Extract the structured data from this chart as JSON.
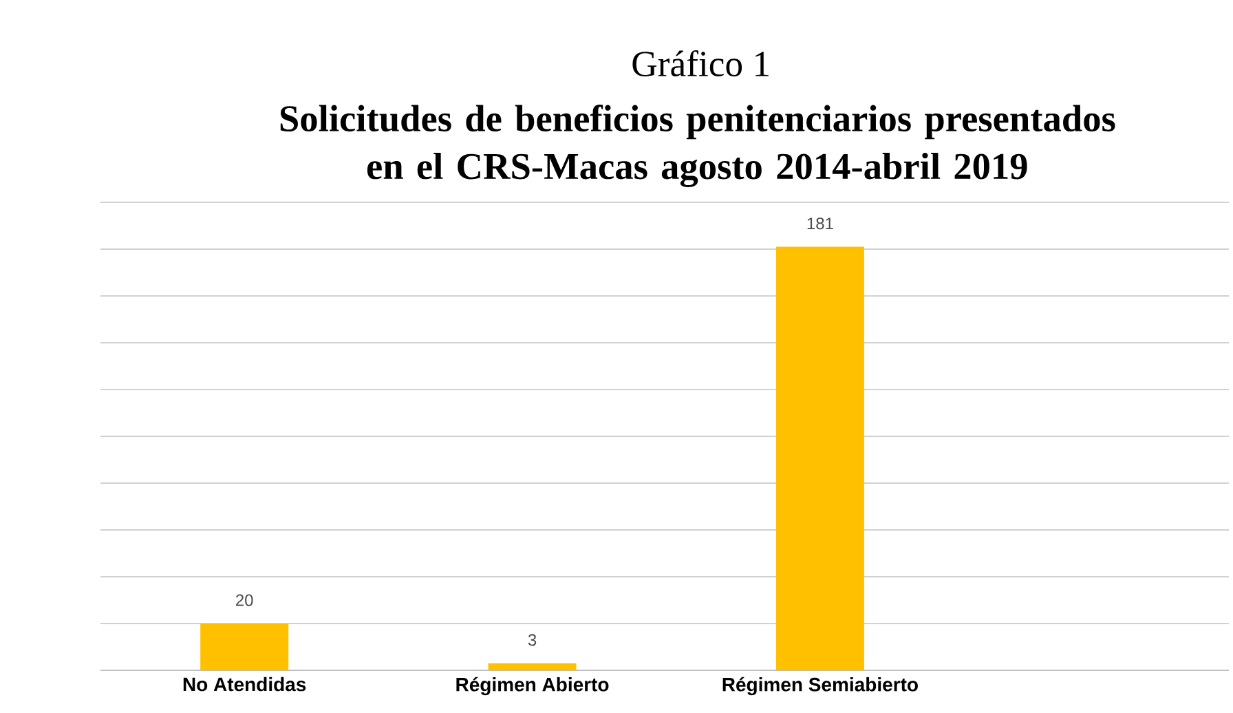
{
  "chart_data": {
    "type": "bar",
    "title": "Gráfico 1",
    "subtitle": "Solicitudes de beneficios penitenciarios presentados en el CRS-Macas agosto 2014-abril 2019",
    "categories": [
      "No Atendidas",
      "Régimen Abierto",
      "Régimen Semiabierto",
      null
    ],
    "values": [
      20,
      3,
      181,
      null
    ],
    "color": "#ffc000",
    "data_labels": true,
    "grid": "y",
    "tick_labels": "x",
    "ylim": [
      0,
      200
    ]
  }
}
